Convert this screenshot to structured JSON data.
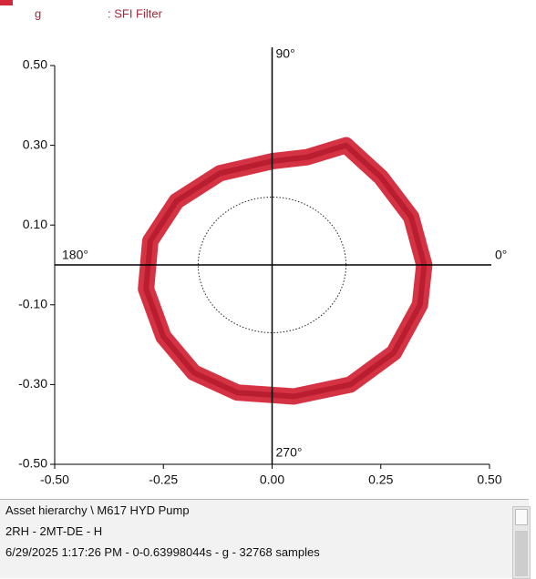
{
  "chart_data": {
    "type": "orbit",
    "legend": [
      "g",
      ": SFI Filter"
    ],
    "angle_labels": [
      "90°",
      "0°",
      "180°",
      "270°"
    ],
    "series": [
      {
        "name": "SFI Filter",
        "color": "#d3283a",
        "x": [
          0.17,
          0.25,
          0.32,
          0.35,
          0.34,
          0.28,
          0.18,
          0.05,
          -0.08,
          -0.18,
          -0.25,
          -0.29,
          -0.28,
          -0.22,
          -0.12,
          0.0,
          0.08
        ],
        "y": [
          0.3,
          0.22,
          0.12,
          0.0,
          -0.1,
          -0.22,
          -0.3,
          -0.33,
          -0.32,
          -0.27,
          -0.18,
          -0.06,
          0.06,
          0.16,
          0.23,
          0.26,
          0.27
        ]
      }
    ],
    "circle_radius": 0.17,
    "xlim": [
      -0.5,
      0.5
    ],
    "ylim": [
      -0.5,
      0.5
    ],
    "xticks": [
      {
        "value": -0.5,
        "label": "-0.50"
      },
      {
        "value": -0.25,
        "label": "-0.25"
      },
      {
        "value": 0,
        "label": "0.00"
      },
      {
        "value": 0.25,
        "label": "0.25"
      },
      {
        "value": 0.5,
        "label": "0.50"
      }
    ],
    "yticks": [
      {
        "value": 0.5,
        "label": "0.50"
      },
      {
        "value": 0.3,
        "label": "0.30"
      },
      {
        "value": 0.1,
        "label": "0.10"
      },
      {
        "value": -0.1,
        "label": "-0.10"
      },
      {
        "value": -0.3,
        "label": "-0.30"
      },
      {
        "value": -0.5,
        "label": "-0.50"
      }
    ]
  },
  "info": [
    "Asset hierarchy \\ M617 HYD Pump",
    "2RH - 2MT-DE - H",
    "6/29/2025 1:17:26 PM - 0-0.63998044s - g - 32768 samples"
  ]
}
